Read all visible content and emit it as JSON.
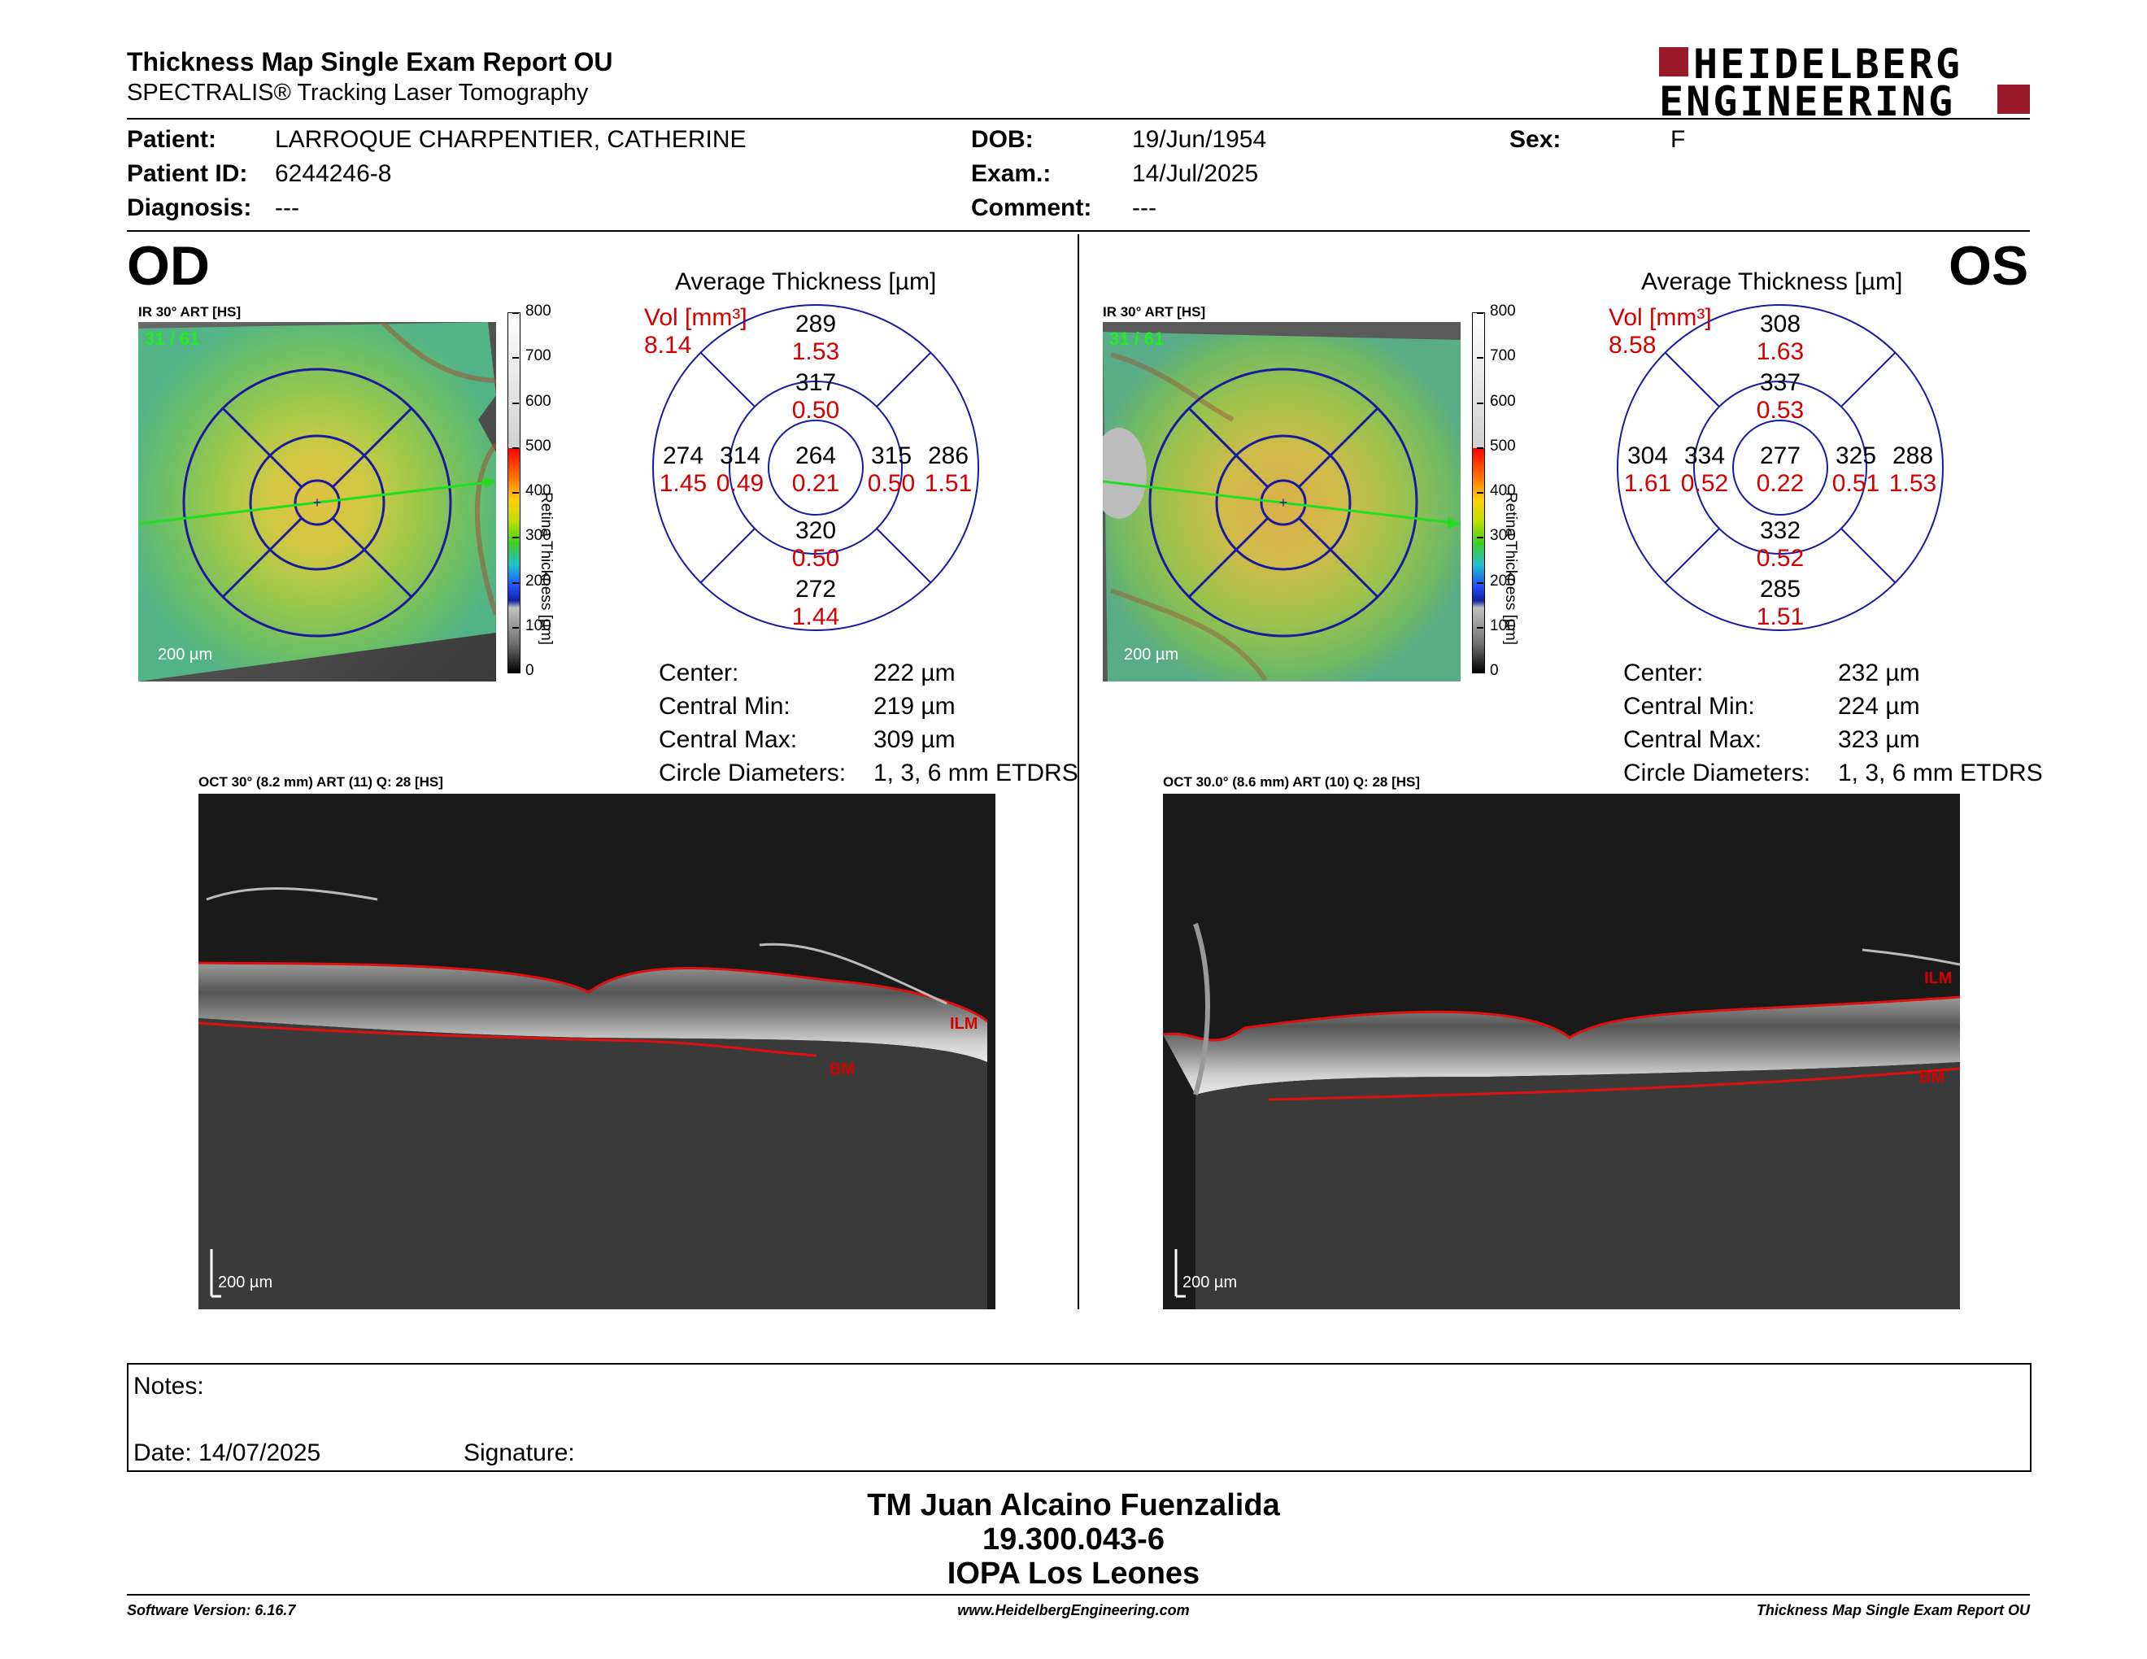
{
  "header": {
    "title": "Thickness Map Single Exam Report OU",
    "subtitle": "SPECTRALIS® Tracking Laser Tomography",
    "logo_line1": "HEIDELBERG",
    "logo_line2": "ENGINEERING"
  },
  "patient": {
    "patient_label": "Patient:",
    "patient_value": "LARROQUE CHARPENTIER, CATHERINE",
    "id_label": "Patient ID:",
    "id_value": "6244246-8",
    "diag_label": "Diagnosis:",
    "diag_value": "---",
    "dob_label": "DOB:",
    "dob_value": "19/Jun/1954",
    "exam_label": "Exam.:",
    "exam_value": "14/Jul/2025",
    "comment_label": "Comment:",
    "comment_value": "---",
    "sex_label": "Sex:",
    "sex_value": "F"
  },
  "od": {
    "eye": "OD",
    "ir_label": "IR 30° ART [HS]",
    "frames": "31 / 61",
    "scale": "200 µm",
    "avg_title": "Average Thickness [µm]",
    "vol_label": "Vol [mm³]",
    "vol_value": "8.14",
    "sectors": {
      "outer_sup": "289",
      "outer_sup_vol": "1.53",
      "inner_sup": "317",
      "inner_sup_vol": "0.50",
      "outer_temp": "274",
      "outer_temp_vol": "1.45",
      "inner_temp": "314",
      "inner_temp_vol": "0.49",
      "center": "264",
      "center_vol": "0.21",
      "inner_nas": "315",
      "inner_nas_vol": "0.50",
      "outer_nas": "286",
      "outer_nas_vol": "1.51",
      "inner_inf": "320",
      "inner_inf_vol": "0.50",
      "outer_inf": "272",
      "outer_inf_vol": "1.44"
    },
    "stats": {
      "center_label": "Center:",
      "center_value": "222 µm",
      "min_label": "Central Min:",
      "min_value": "219 µm",
      "max_label": "Central Max:",
      "max_value": "309 µm",
      "circ_label": "Circle Diameters:",
      "circ_value": "1, 3, 6 mm ETDRS"
    },
    "oct_label": "OCT 30° (8.2 mm) ART (11) Q: 28 [HS]",
    "oct_scale": "200 µm",
    "ilm": "ILM",
    "bm": "BM"
  },
  "os": {
    "eye": "OS",
    "ir_label": "IR 30° ART [HS]",
    "frames": "31 / 61",
    "scale": "200 µm",
    "avg_title": "Average Thickness [µm]",
    "vol_label": "Vol [mm³]",
    "vol_value": "8.58",
    "sectors": {
      "outer_sup": "308",
      "outer_sup_vol": "1.63",
      "inner_sup": "337",
      "inner_sup_vol": "0.53",
      "outer_temp": "304",
      "outer_temp_vol": "1.61",
      "inner_temp": "334",
      "inner_temp_vol": "0.52",
      "center": "277",
      "center_vol": "0.22",
      "inner_nas": "325",
      "inner_nas_vol": "0.51",
      "outer_nas": "288",
      "outer_nas_vol": "1.53",
      "inner_inf": "332",
      "inner_inf_vol": "0.52",
      "outer_inf": "285",
      "outer_inf_vol": "1.51"
    },
    "stats": {
      "center_label": "Center:",
      "center_value": "232 µm",
      "min_label": "Central Min:",
      "min_value": "224 µm",
      "max_label": "Central Max:",
      "max_value": "323 µm",
      "circ_label": "Circle Diameters:",
      "circ_value": "1, 3, 6 mm ETDRS"
    },
    "oct_label": "OCT 30.0° (8.6 mm) ART (10) Q: 28 [HS]",
    "oct_scale": "200 µm",
    "ilm": "ILM",
    "bm": "BM"
  },
  "colorbar": {
    "ticks": [
      "800",
      "700",
      "600",
      "500",
      "400",
      "300",
      "200",
      "100",
      "0"
    ],
    "title": "Retina Thickness [µm]"
  },
  "notes": {
    "notes_label": "Notes:",
    "date_label": "Date: 14/07/2025",
    "signature_label": "Signature:"
  },
  "signature_block": {
    "line1": "TM Juan Alcaino Fuenzalida",
    "line2": "19.300.043-6",
    "line3": "IOPA Los Leones"
  },
  "footer": {
    "software": "Software Version: 6.16.7",
    "website": "www.HeidelbergEngineering.com",
    "report": "Thickness Map Single Exam Report OU"
  },
  "colors": {
    "red": "#d40000",
    "logo": "#9c1b2b",
    "grid": "#1a1aa0"
  }
}
